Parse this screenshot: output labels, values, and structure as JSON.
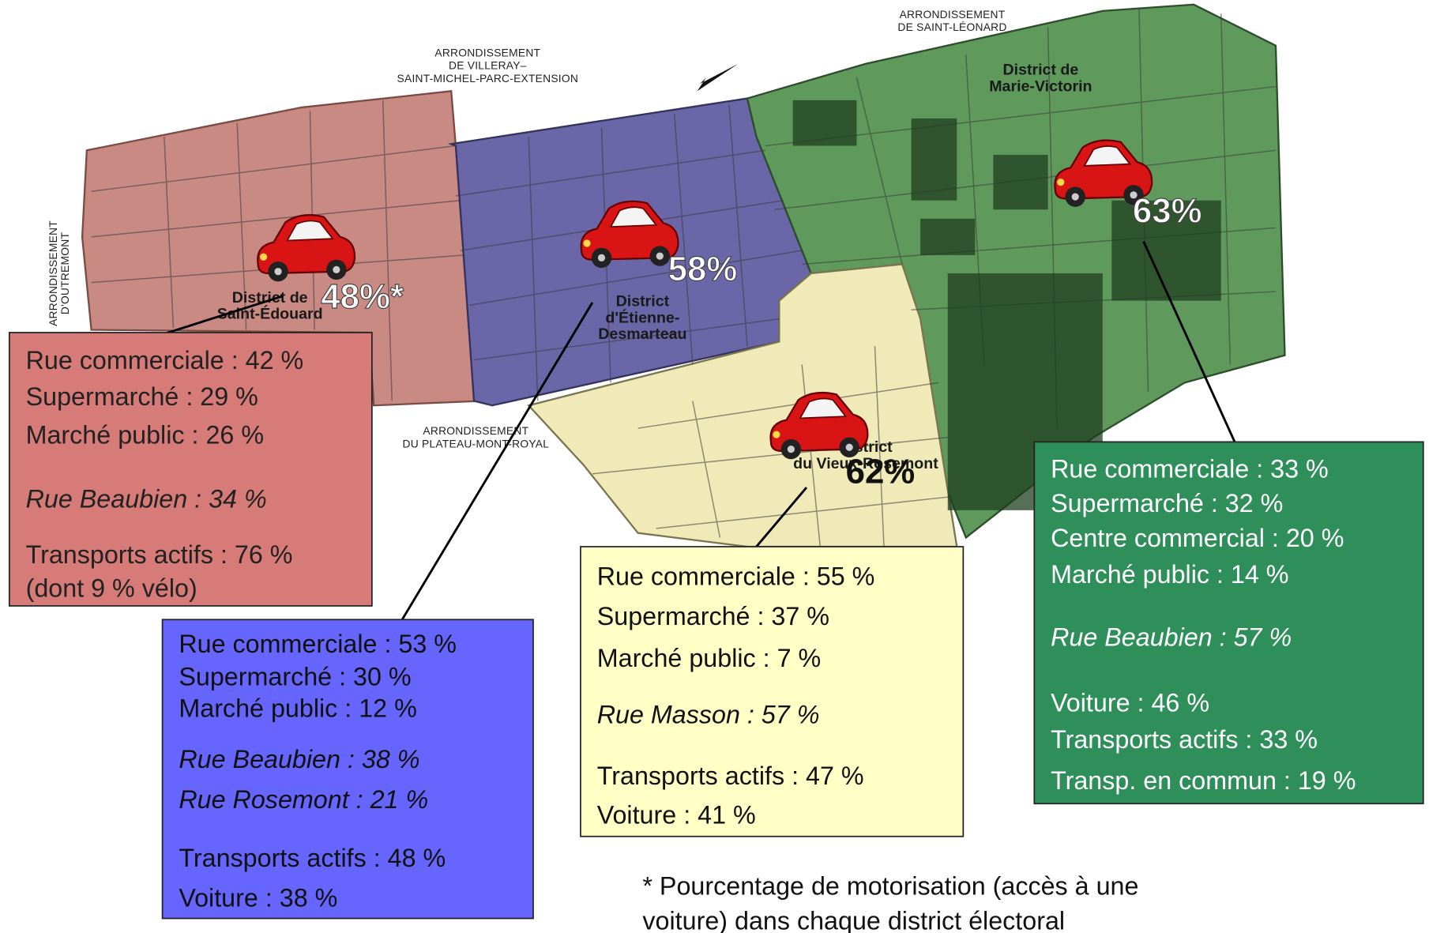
{
  "map": {
    "arrondissements": [
      {
        "lines": [
          "ARRONDISSEMENT",
          "DE VILLERAY–",
          "SAINT-MICHEL-PARC-EXTENSION"
        ]
      },
      {
        "lines": [
          "ARRONDISSEMENT",
          "DE SAINT-LÉONARD"
        ]
      },
      {
        "lines": [
          "ARRONDISSEMENT",
          "DU PLATEAU-MONT-ROYAL"
        ]
      },
      {
        "lines": [
          "ARRONDISSEMENT",
          "D'OUTREMONT"
        ]
      }
    ],
    "districts": [
      {
        "name": [
          "District de",
          "Saint-Édouard"
        ],
        "motorisation": "48%*",
        "lines": [
          {
            "text": "Rue commerciale : 42 %",
            "italic": false
          },
          {
            "text": "Supermarché : 29 %",
            "italic": false
          },
          {
            "text": "Marché public : 26 %",
            "italic": false
          },
          {
            "text": "Rue Beaubien : 34 %",
            "italic": true
          },
          {
            "text": "Transports actifs : 76 %",
            "italic": false
          },
          {
            "text": "(dont 9 % vélo)",
            "italic": false
          }
        ]
      },
      {
        "name": [
          "District",
          "d'Étienne-",
          "Desmarteau"
        ],
        "motorisation": "58%",
        "lines": [
          {
            "text": "Rue commerciale : 53 %",
            "italic": false
          },
          {
            "text": "Supermarché : 30 %",
            "italic": false
          },
          {
            "text": "Marché public : 12 %",
            "italic": false
          },
          {
            "text": "Rue Beaubien : 38 %",
            "italic": true
          },
          {
            "text": "Rue Rosemont : 21 %",
            "italic": true
          },
          {
            "text": "Transports actifs : 48 %",
            "italic": false
          },
          {
            "text": "Voiture : 38 %",
            "italic": false
          }
        ]
      },
      {
        "name": [
          "District",
          "du Vieux-Rosemont"
        ],
        "motorisation": "62%",
        "lines": [
          {
            "text": "Rue commerciale : 55 %",
            "italic": false
          },
          {
            "text": "Supermarché : 37 %",
            "italic": false
          },
          {
            "text": "Marché public : 7 %",
            "italic": false
          },
          {
            "text": "Rue Masson : 57 %",
            "italic": true
          },
          {
            "text": "Transports actifs : 47 %",
            "italic": false
          },
          {
            "text": "Voiture : 41 %",
            "italic": false
          }
        ]
      },
      {
        "name": [
          "District de",
          "Marie-Victorin"
        ],
        "motorisation": "63%",
        "lines": [
          {
            "text": "Rue commerciale : 33 %",
            "italic": false
          },
          {
            "text": "Supermarché : 32 %",
            "italic": false
          },
          {
            "text": "Centre commercial : 20 %",
            "italic": false
          },
          {
            "text": "Marché public : 14 %",
            "italic": false
          },
          {
            "text": "Rue Beaubien : 57 %",
            "italic": true
          },
          {
            "text": "Voiture : 46 %",
            "italic": false
          },
          {
            "text": "Transports actifs : 33 %",
            "italic": false
          },
          {
            "text": "Transp. en commun : 19 %",
            "italic": false
          }
        ]
      }
    ]
  },
  "footnote": [
    "* Pourcentage de motorisation (accès à une",
    "voiture) dans chaque district électoral"
  ]
}
